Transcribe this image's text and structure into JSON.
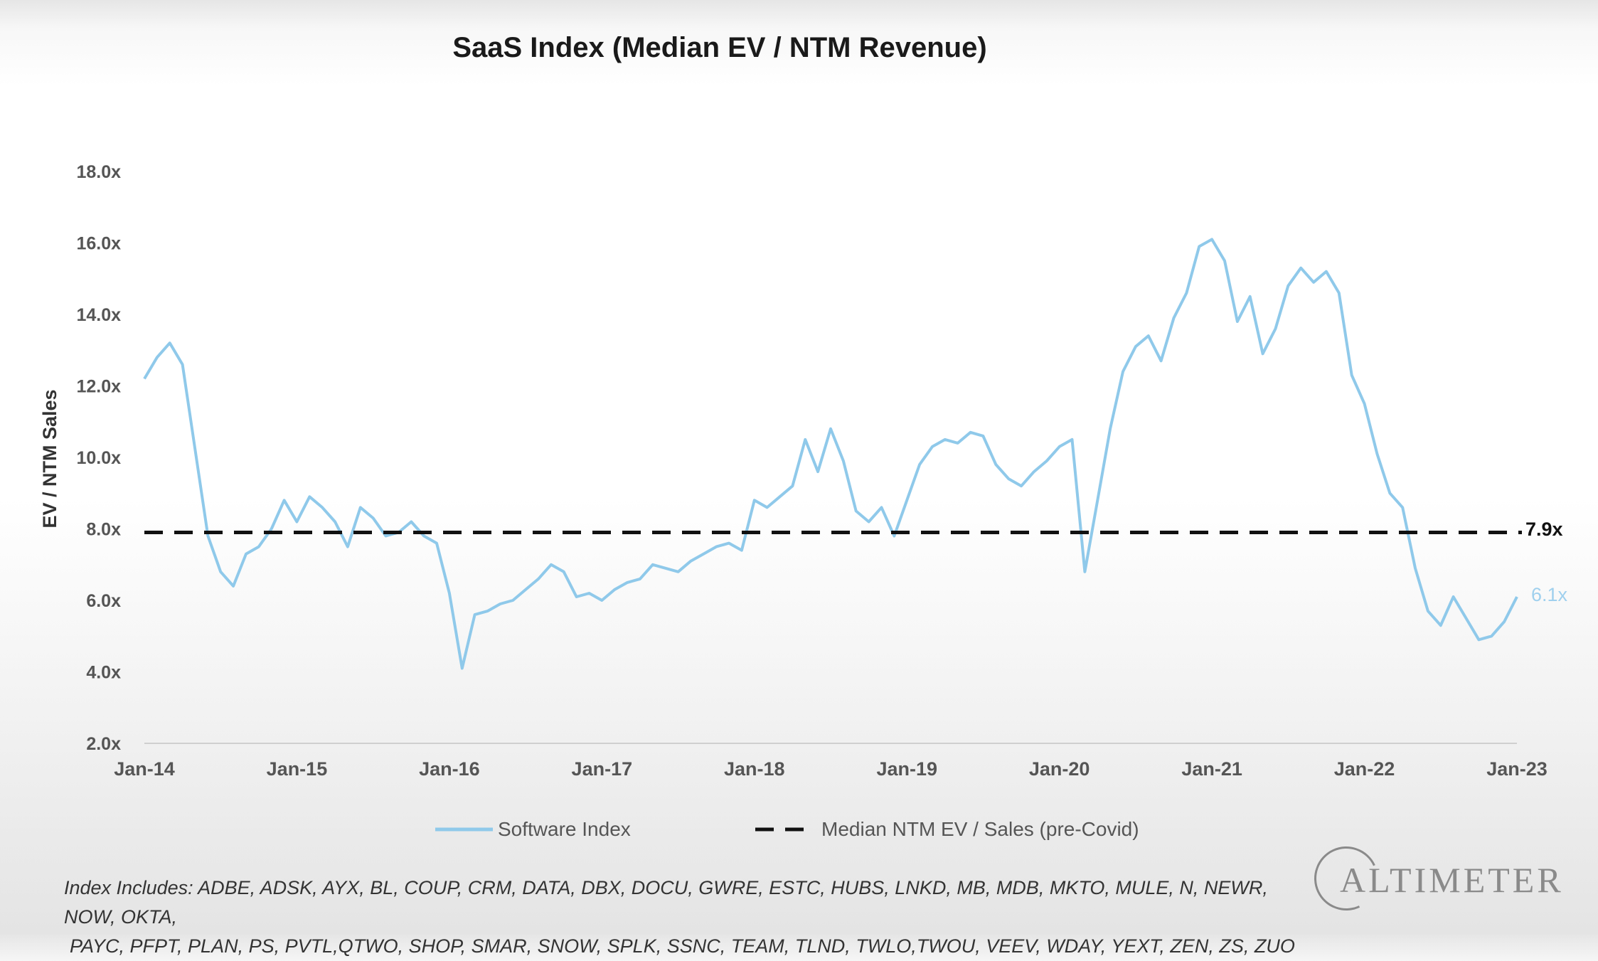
{
  "chart_data": {
    "type": "line",
    "title": "SaaS Index (Median EV / NTM Revenue)",
    "ylabel": "EV / NTM Sales",
    "xlabel": "",
    "ylim": [
      2,
      18
    ],
    "yticks": [
      2,
      4,
      6,
      8,
      10,
      12,
      14,
      16,
      18
    ],
    "ytick_labels": [
      "2.0x",
      "4.0x",
      "6.0x",
      "8.0x",
      "10.0x",
      "12.0x",
      "14.0x",
      "16.0x",
      "18.0x"
    ],
    "xlim": [
      "2014-01",
      "2023-01"
    ],
    "xtick_labels": [
      "Jan-14",
      "Jan-15",
      "Jan-16",
      "Jan-17",
      "Jan-18",
      "Jan-19",
      "Jan-20",
      "Jan-21",
      "Jan-22",
      "Jan-23"
    ],
    "grid": false,
    "legend_position": "bottom",
    "series": [
      {
        "name": "Software Index",
        "color": "#8fc9ea",
        "points": [
          [
            "2014-01",
            12.2
          ],
          [
            "2014-02",
            12.8
          ],
          [
            "2014-03",
            13.2
          ],
          [
            "2014-04",
            12.6
          ],
          [
            "2014-05",
            10.2
          ],
          [
            "2014-06",
            7.8
          ],
          [
            "2014-07",
            6.8
          ],
          [
            "2014-08",
            6.4
          ],
          [
            "2014-09",
            7.3
          ],
          [
            "2014-10",
            7.5
          ],
          [
            "2014-11",
            8.0
          ],
          [
            "2014-12",
            8.8
          ],
          [
            "2015-01",
            8.2
          ],
          [
            "2015-02",
            8.9
          ],
          [
            "2015-03",
            8.6
          ],
          [
            "2015-04",
            8.2
          ],
          [
            "2015-05",
            7.5
          ],
          [
            "2015-06",
            8.6
          ],
          [
            "2015-07",
            8.3
          ],
          [
            "2015-08",
            7.8
          ],
          [
            "2015-09",
            7.9
          ],
          [
            "2015-10",
            8.2
          ],
          [
            "2015-11",
            7.8
          ],
          [
            "2015-12",
            7.6
          ],
          [
            "2016-01",
            6.2
          ],
          [
            "2016-02",
            4.1
          ],
          [
            "2016-03",
            5.6
          ],
          [
            "2016-04",
            5.7
          ],
          [
            "2016-05",
            5.9
          ],
          [
            "2016-06",
            6.0
          ],
          [
            "2016-07",
            6.3
          ],
          [
            "2016-08",
            6.6
          ],
          [
            "2016-09",
            7.0
          ],
          [
            "2016-10",
            6.8
          ],
          [
            "2016-11",
            6.1
          ],
          [
            "2016-12",
            6.2
          ],
          [
            "2017-01",
            6.0
          ],
          [
            "2017-02",
            6.3
          ],
          [
            "2017-03",
            6.5
          ],
          [
            "2017-04",
            6.6
          ],
          [
            "2017-05",
            7.0
          ],
          [
            "2017-06",
            6.9
          ],
          [
            "2017-07",
            6.8
          ],
          [
            "2017-08",
            7.1
          ],
          [
            "2017-09",
            7.3
          ],
          [
            "2017-10",
            7.5
          ],
          [
            "2017-11",
            7.6
          ],
          [
            "2017-12",
            7.4
          ],
          [
            "2018-01",
            8.8
          ],
          [
            "2018-02",
            8.6
          ],
          [
            "2018-03",
            8.9
          ],
          [
            "2018-04",
            9.2
          ],
          [
            "2018-05",
            10.5
          ],
          [
            "2018-06",
            9.6
          ],
          [
            "2018-07",
            10.8
          ],
          [
            "2018-08",
            9.9
          ],
          [
            "2018-09",
            8.5
          ],
          [
            "2018-10",
            8.2
          ],
          [
            "2018-11",
            8.6
          ],
          [
            "2018-12",
            7.8
          ],
          [
            "2019-01",
            8.8
          ],
          [
            "2019-02",
            9.8
          ],
          [
            "2019-03",
            10.3
          ],
          [
            "2019-04",
            10.5
          ],
          [
            "2019-05",
            10.4
          ],
          [
            "2019-06",
            10.7
          ],
          [
            "2019-07",
            10.6
          ],
          [
            "2019-08",
            9.8
          ],
          [
            "2019-09",
            9.4
          ],
          [
            "2019-10",
            9.2
          ],
          [
            "2019-11",
            9.6
          ],
          [
            "2019-12",
            9.9
          ],
          [
            "2020-01",
            10.3
          ],
          [
            "2020-02",
            10.5
          ],
          [
            "2020-03",
            6.8
          ],
          [
            "2020-04",
            8.8
          ],
          [
            "2020-05",
            10.8
          ],
          [
            "2020-06",
            12.4
          ],
          [
            "2020-07",
            13.1
          ],
          [
            "2020-08",
            13.4
          ],
          [
            "2020-09",
            12.7
          ],
          [
            "2020-10",
            13.9
          ],
          [
            "2020-11",
            14.6
          ],
          [
            "2020-12",
            15.9
          ],
          [
            "2021-01",
            16.1
          ],
          [
            "2021-02",
            15.5
          ],
          [
            "2021-03",
            13.8
          ],
          [
            "2021-04",
            14.5
          ],
          [
            "2021-05",
            12.9
          ],
          [
            "2021-06",
            13.6
          ],
          [
            "2021-07",
            14.8
          ],
          [
            "2021-08",
            15.3
          ],
          [
            "2021-09",
            14.9
          ],
          [
            "2021-10",
            15.2
          ],
          [
            "2021-11",
            14.6
          ],
          [
            "2021-12",
            12.3
          ],
          [
            "2022-01",
            11.5
          ],
          [
            "2022-02",
            10.1
          ],
          [
            "2022-03",
            9.0
          ],
          [
            "2022-04",
            8.6
          ],
          [
            "2022-05",
            6.9
          ],
          [
            "2022-06",
            5.7
          ],
          [
            "2022-07",
            5.3
          ],
          [
            "2022-08",
            6.1
          ],
          [
            "2022-09",
            5.5
          ],
          [
            "2022-10",
            4.9
          ],
          [
            "2022-11",
            5.0
          ],
          [
            "2022-12",
            5.4
          ],
          [
            "2023-01",
            6.1
          ]
        ]
      },
      {
        "name": "Median NTM EV / Sales (pre-Covid)",
        "color": "#111111",
        "style": "dashed",
        "value": 7.9
      }
    ],
    "annotations": {
      "reference_label": "7.9x",
      "last_value_label": "6.1x"
    }
  },
  "footnote": {
    "line1": "Index Includes: ADBE, ADSK, AYX, BL, COUP, CRM, DATA, DBX, DOCU, GWRE, ESTC, HUBS, LNKD, MB, MDB, MKTO, MULE, N, NEWR, NOW, OKTA,",
    "line2": "PAYC, PFPT, PLAN, PS, PVTL,QTWO, SHOP, SMAR, SNOW, SPLK, SSNC, TEAM, TLND, TWLO,TWOU, VEEV, WDAY, YEXT, ZEN, ZS, ZUO"
  },
  "logo": {
    "text": "ALTIMETER"
  }
}
